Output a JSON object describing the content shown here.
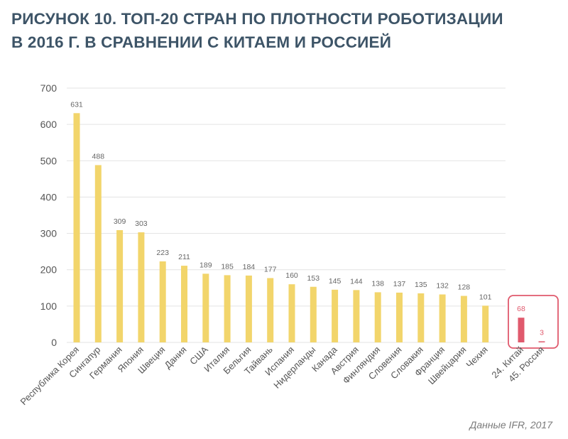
{
  "title_line1": "РИСУНОК 10. ТОП-20 СТРАН ПО ПЛОТНОСТИ РОБОТИЗАЦИИ",
  "title_line2": "В 2016 Г. В СРАВНЕНИИ С КИТАЕМ И РОССИЕЙ",
  "source": "Данные IFR, 2017",
  "colors": {
    "bar": "#f2d56b",
    "highlight": "#e05a6d",
    "grid": "#e3e3e3",
    "axis_text": "#555555",
    "value_text": "#666666",
    "title": "#3d5467"
  },
  "chart_data": {
    "type": "bar",
    "categories": [
      "Республика Корея",
      "Сингапур",
      "Германия",
      "Япония",
      "Швеция",
      "Дания",
      "США",
      "Италия",
      "Бельгия",
      "Тайвань",
      "Испания",
      "Нидерланды",
      "Канада",
      "Австрия",
      "Финляндия",
      "Словения",
      "Словакия",
      "Франция",
      "Швейцария",
      "Чехия",
      "24. Китай",
      "45. Россия"
    ],
    "values": [
      631,
      488,
      309,
      303,
      223,
      211,
      189,
      185,
      184,
      177,
      160,
      153,
      145,
      144,
      138,
      137,
      135,
      132,
      128,
      101,
      68,
      3
    ],
    "highlighted": [
      "24. Китай",
      "45. Россия"
    ],
    "ylim": [
      0,
      700
    ],
    "yticks": [
      0,
      100,
      200,
      300,
      400,
      500,
      600,
      700
    ],
    "grid": true
  }
}
